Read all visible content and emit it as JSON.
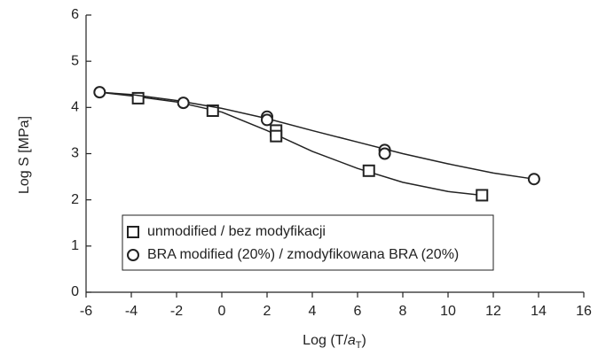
{
  "chart_data": {
    "type": "scatter",
    "x_label": {
      "prefix": "Log (T/",
      "var": "a",
      "sub": "T",
      "suffix": ")"
    },
    "y_label": "Log S [MPa]",
    "xlim": [
      -6,
      16
    ],
    "xticks": [
      -6,
      -4,
      -2,
      0,
      2,
      4,
      6,
      8,
      10,
      12,
      14,
      16
    ],
    "ylim": [
      0,
      6
    ],
    "yticks": [
      0,
      1,
      2,
      3,
      4,
      5,
      6
    ],
    "series": [
      {
        "name": "unmodified / bez modyfikacji",
        "marker": "square",
        "color": "#222222",
        "x": [
          -3.7,
          -0.4,
          2.4,
          2.4,
          6.5,
          11.5
        ],
        "values": [
          4.2,
          3.93,
          3.5,
          3.38,
          2.63,
          2.1
        ],
        "fit_x": [
          -5.4,
          -4,
          -2,
          0,
          2,
          4,
          6,
          8,
          10,
          11.5
        ],
        "fit_values": [
          4.33,
          4.25,
          4.12,
          3.9,
          3.5,
          3.05,
          2.68,
          2.38,
          2.18,
          2.1
        ]
      },
      {
        "name": "BRA modified (20%) / zmodyfikowana BRA (20%)",
        "marker": "circle",
        "color": "#222222",
        "x": [
          -5.4,
          -1.7,
          2.0,
          2.0,
          7.2,
          7.2,
          13.8
        ],
        "values": [
          4.33,
          4.1,
          3.8,
          3.73,
          3.08,
          3.0,
          2.45
        ],
        "fit_x": [
          -5.4,
          -4,
          -2,
          0,
          2,
          4,
          6,
          8,
          10,
          12,
          13.8
        ],
        "fit_values": [
          4.33,
          4.28,
          4.15,
          3.98,
          3.76,
          3.5,
          3.25,
          3.0,
          2.78,
          2.58,
          2.45
        ]
      }
    ]
  }
}
